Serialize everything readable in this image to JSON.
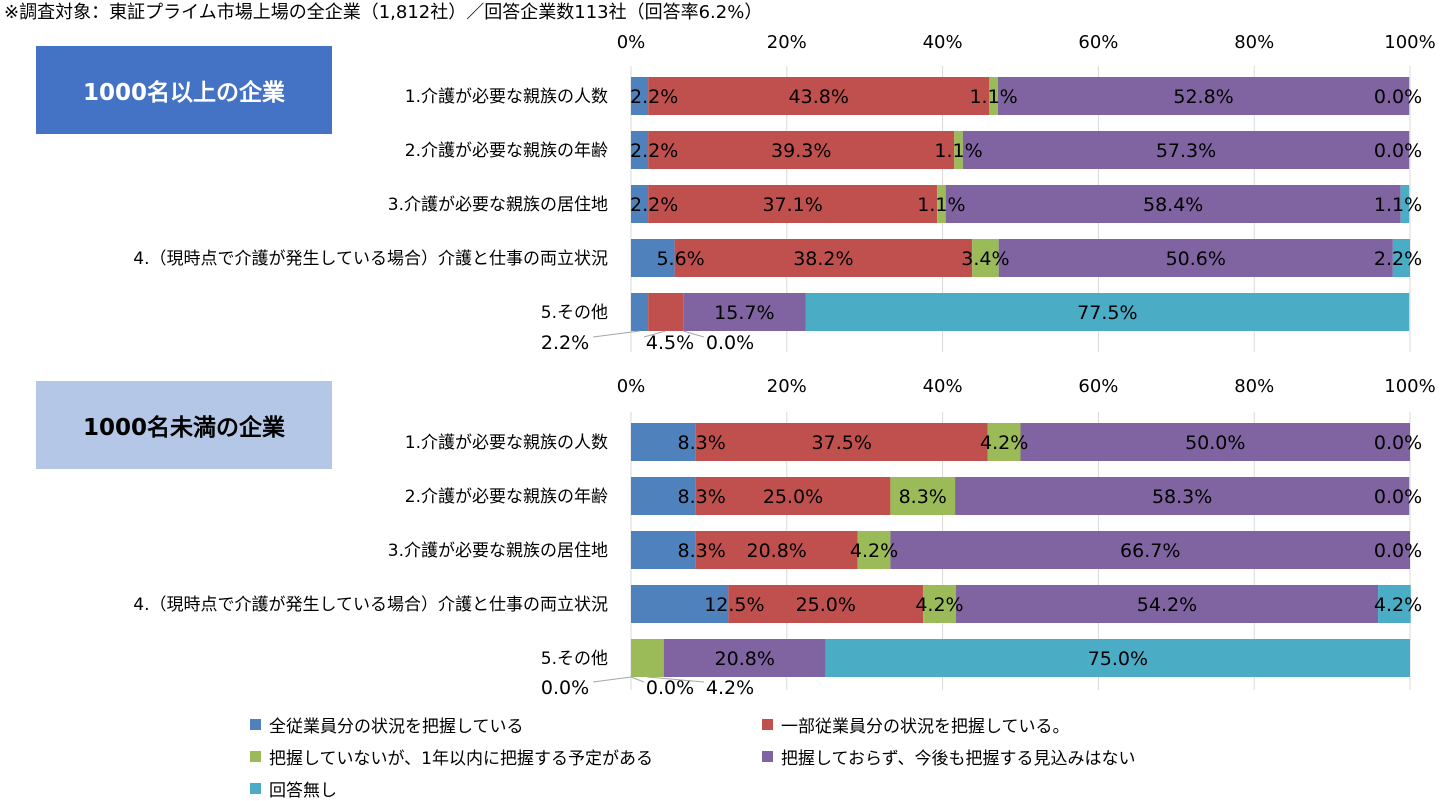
{
  "note": "※調査対象：東証プライム市場上場の全企業（1,812社）／回答企業数113社（回答率6.2%）",
  "panels": [
    {
      "label": "1000名以上の企業",
      "color": "#4472c4",
      "text_color": "#ffffff"
    },
    {
      "label": "1000名未満の企業",
      "color": "#b4c7e7",
      "text_color": "#000000"
    }
  ],
  "legend": [
    {
      "label": "全従業員分の状況を把握している",
      "color": "#4f81bd"
    },
    {
      "label": "一部従業員分の状況を把握している。",
      "color": "#c0504d"
    },
    {
      "label": "把握していないが、1年以内に把握する予定がある",
      "color": "#9bbb59"
    },
    {
      "label": "把握しておらず、今後も把握する見込みはない",
      "color": "#8064a2"
    },
    {
      "label": "回答無し",
      "color": "#4bacc6"
    }
  ],
  "chart_data": [
    {
      "type": "bar",
      "stacked": true,
      "orientation": "horizontal",
      "title": "1000名以上の企業",
      "x_ticks": [
        "0%",
        "20%",
        "40%",
        "60%",
        "80%",
        "100%"
      ],
      "xlim": [
        0,
        100
      ],
      "categories": [
        "1.介護が必要な親族の人数",
        "2.介護が必要な親族の年齢",
        "3.介護が必要な親族の居住地",
        "4.（現時点で介護が発生している場合）介護と仕事の両立状況",
        "5.その他"
      ],
      "series": [
        {
          "name": "全従業員分の状況を把握している",
          "color": "#4f81bd",
          "values": [
            2.2,
            2.2,
            2.2,
            5.6,
            2.2
          ]
        },
        {
          "name": "一部従業員分の状況を把握している。",
          "color": "#c0504d",
          "values": [
            43.8,
            39.3,
            37.1,
            38.2,
            4.5
          ]
        },
        {
          "name": "把握していないが、1年以内に把握する予定がある",
          "color": "#9bbb59",
          "values": [
            1.1,
            1.1,
            1.1,
            3.4,
            0.0
          ]
        },
        {
          "name": "把握しておらず、今後も把握する見込みはない",
          "color": "#8064a2",
          "values": [
            52.8,
            57.3,
            58.4,
            50.6,
            15.7
          ]
        },
        {
          "name": "回答無し",
          "color": "#4bacc6",
          "values": [
            0.0,
            0.0,
            1.1,
            2.2,
            77.5
          ]
        }
      ],
      "labels": [
        [
          "2.2%",
          "43.8%",
          "1.1%",
          "52.8%",
          "0.0%"
        ],
        [
          "2.2%",
          "39.3%",
          "1.1%",
          "57.3%",
          "0.0%"
        ],
        [
          "2.2%",
          "37.1%",
          "1.1%",
          "58.4%",
          "1.1%"
        ],
        [
          "5.6%",
          "38.2%",
          "3.4%",
          "50.6%",
          "2.2%"
        ],
        [
          "2.2%",
          "4.5%",
          "0.0%",
          "15.7%",
          "77.5%"
        ]
      ]
    },
    {
      "type": "bar",
      "stacked": true,
      "orientation": "horizontal",
      "title": "1000名未満の企業",
      "x_ticks": [
        "0%",
        "20%",
        "40%",
        "60%",
        "80%",
        "100%"
      ],
      "xlim": [
        0,
        100
      ],
      "categories": [
        "1.介護が必要な親族の人数",
        "2.介護が必要な親族の年齢",
        "3.介護が必要な親族の居住地",
        "4.（現時点で介護が発生している場合）介護と仕事の両立状況",
        "5.その他"
      ],
      "series": [
        {
          "name": "全従業員分の状況を把握している",
          "color": "#4f81bd",
          "values": [
            8.3,
            8.3,
            8.3,
            12.5,
            0.0
          ]
        },
        {
          "name": "一部従業員分の状況を把握している。",
          "color": "#c0504d",
          "values": [
            37.5,
            25.0,
            20.8,
            25.0,
            0.0
          ]
        },
        {
          "name": "把握していないが、1年以内に把握する予定がある",
          "color": "#9bbb59",
          "values": [
            4.2,
            8.3,
            4.2,
            4.2,
            4.2
          ]
        },
        {
          "name": "把握しておらず、今後も把握する見込みはない",
          "color": "#8064a2",
          "values": [
            50.0,
            58.3,
            66.7,
            54.2,
            20.8
          ]
        },
        {
          "name": "回答無し",
          "color": "#4bacc6",
          "values": [
            0.0,
            0.0,
            0.0,
            4.2,
            75.0
          ]
        }
      ],
      "labels": [
        [
          "8.3%",
          "37.5%",
          "4.2%",
          "50.0%",
          "0.0%"
        ],
        [
          "8.3%",
          "25.0%",
          "8.3%",
          "58.3%",
          "0.0%"
        ],
        [
          "8.3%",
          "20.8%",
          "4.2%",
          "66.7%",
          "0.0%"
        ],
        [
          "12.5%",
          "25.0%",
          "4.2%",
          "54.2%",
          "4.2%"
        ],
        [
          "0.0%",
          "0.0%",
          "4.2%",
          "20.8%",
          "75.0%"
        ]
      ]
    }
  ]
}
